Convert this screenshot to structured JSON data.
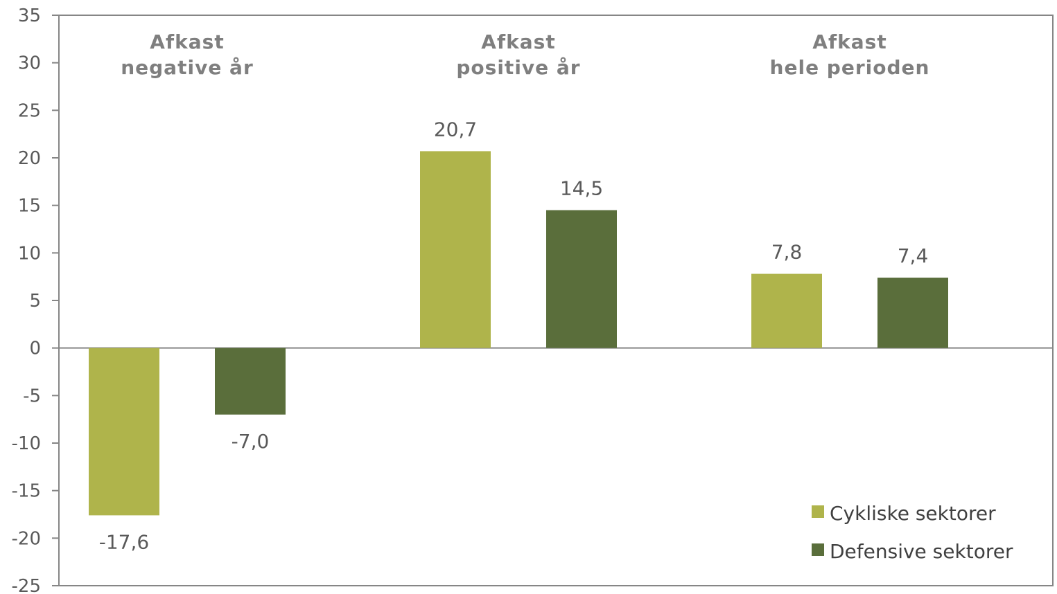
{
  "chart_data": {
    "type": "bar",
    "categories": [
      [
        "Afkast",
        "negative år"
      ],
      [
        "Afkast",
        "positive år"
      ],
      [
        "Afkast",
        "hele perioden"
      ]
    ],
    "series": [
      {
        "name": "Cykliske sektorer",
        "color": "#afb44b",
        "values": [
          -17.6,
          20.7,
          7.8
        ],
        "labels": [
          "-17,6",
          "20,7",
          "7,8"
        ]
      },
      {
        "name": "Defensive sektorer",
        "color": "#5a6e3b",
        "values": [
          -7.0,
          14.5,
          7.4
        ],
        "labels": [
          "-7,0",
          "14,5",
          "7,4"
        ]
      }
    ],
    "ylim": [
      -25,
      35
    ],
    "yticks": [
      35,
      30,
      25,
      20,
      15,
      10,
      5,
      0,
      -5,
      -10,
      -15,
      -20,
      -25
    ],
    "grid": false,
    "legend_position": "bottom-right",
    "axis_color": "#868686"
  }
}
